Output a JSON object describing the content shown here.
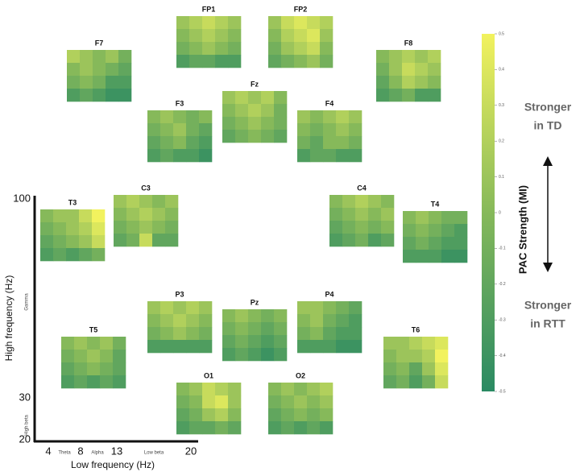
{
  "chart_data": {
    "type": "heatmap",
    "ylabel": "High frequency (Hz)",
    "xlabel": "Low frequency (Hz)",
    "yticks": [
      100,
      30,
      20
    ],
    "ybands": [
      "Gamma",
      "High beta"
    ],
    "xticks": [
      4,
      8,
      13,
      20
    ],
    "xbands": [
      "Theta",
      "Alpha",
      "Low beta"
    ],
    "colorbar_label": "PAC Strength (MI)",
    "zlim": [
      -0.5,
      0.5
    ],
    "zticks": [
      0.5,
      0.4,
      0.3,
      0.2,
      0.1,
      0,
      -0.1,
      -0.2,
      -0.3,
      -0.4,
      -0.5
    ],
    "top_annotation": [
      "Stronger",
      "in TD"
    ],
    "bottom_annotation": [
      "Stronger",
      "in RTT"
    ],
    "panels": [
      {
        "name": "FP1",
        "values": [
          [
            0.1,
            0.2,
            0.3,
            0.2,
            0.1
          ],
          [
            0,
            0.1,
            0.2,
            0.1,
            0
          ],
          [
            -0.1,
            0,
            0.1,
            0,
            -0.1
          ],
          [
            -0.3,
            -0.2,
            -0.2,
            -0.3,
            -0.3
          ]
        ]
      },
      {
        "name": "FP2",
        "values": [
          [
            0.1,
            0.3,
            0.4,
            0.3,
            0.2
          ],
          [
            0,
            0.2,
            0.3,
            0.4,
            0.1
          ],
          [
            -0.1,
            0.1,
            0.2,
            0.3,
            0
          ],
          [
            -0.2,
            -0.1,
            0,
            0.1,
            -0.1
          ]
        ]
      },
      {
        "name": "F7",
        "values": [
          [
            0.2,
            0.1,
            0,
            0.1,
            -0.1
          ],
          [
            0,
            0.1,
            0,
            -0.1,
            -0.2
          ],
          [
            -0.1,
            0,
            -0.1,
            -0.3,
            -0.3
          ],
          [
            -0.3,
            -0.2,
            -0.3,
            -0.4,
            -0.4
          ]
        ]
      },
      {
        "name": "F8",
        "values": [
          [
            0,
            0.1,
            0.2,
            0.1,
            0.2
          ],
          [
            -0.1,
            0.1,
            0.3,
            0.2,
            0.1
          ],
          [
            -0.2,
            0,
            0.2,
            0.1,
            0
          ],
          [
            -0.3,
            -0.2,
            -0.1,
            -0.3,
            -0.3
          ]
        ]
      },
      {
        "name": "Fz",
        "values": [
          [
            0.1,
            0.2,
            0.1,
            0.2,
            0
          ],
          [
            0,
            0.1,
            0.2,
            0.1,
            -0.1
          ],
          [
            -0.1,
            0,
            0.1,
            0,
            -0.1
          ],
          [
            -0.2,
            -0.1,
            0,
            -0.1,
            -0.2
          ]
        ]
      },
      {
        "name": "F3",
        "values": [
          [
            0,
            0.1,
            0,
            -0.1,
            0
          ],
          [
            -0.1,
            0,
            0.1,
            -0.1,
            -0.2
          ],
          [
            -0.2,
            -0.1,
            0,
            -0.2,
            -0.3
          ],
          [
            -0.3,
            -0.2,
            -0.3,
            -0.3,
            -0.4
          ]
        ]
      },
      {
        "name": "F4",
        "values": [
          [
            0.1,
            0,
            0.1,
            0.2,
            0.1
          ],
          [
            0,
            -0.1,
            0,
            0.1,
            0
          ],
          [
            -0.1,
            -0.2,
            0,
            0,
            -0.1
          ],
          [
            -0.3,
            -0.2,
            -0.2,
            -0.3,
            -0.3
          ]
        ]
      },
      {
        "name": "T3",
        "values": [
          [
            0,
            0.1,
            0.1,
            0.3,
            0.5
          ],
          [
            -0.1,
            0,
            0.1,
            0.2,
            0.4
          ],
          [
            -0.2,
            -0.1,
            0,
            0.1,
            0.3
          ],
          [
            -0.3,
            -0.2,
            -0.3,
            -0.2,
            -0.1
          ]
        ]
      },
      {
        "name": "C3",
        "values": [
          [
            0.1,
            0.2,
            0.1,
            0,
            0.1
          ],
          [
            0,
            0.1,
            0.2,
            0.1,
            0
          ],
          [
            -0.1,
            0,
            0.1,
            0,
            -0.1
          ],
          [
            -0.2,
            -0.1,
            0.3,
            -0.2,
            -0.2
          ]
        ]
      },
      {
        "name": "C4",
        "values": [
          [
            0,
            0.1,
            0.2,
            0.1,
            0
          ],
          [
            -0.1,
            0,
            0.1,
            0,
            0.1
          ],
          [
            -0.2,
            -0.1,
            0,
            -0.1,
            0
          ],
          [
            -0.3,
            -0.2,
            -0.1,
            -0.3,
            -0.2
          ]
        ]
      },
      {
        "name": "T4",
        "values": [
          [
            0,
            0.1,
            0,
            -0.1,
            -0.1
          ],
          [
            -0.1,
            0,
            -0.1,
            -0.2,
            -0.3
          ],
          [
            -0.2,
            -0.1,
            -0.2,
            -0.3,
            -0.3
          ],
          [
            -0.3,
            -0.3,
            -0.3,
            -0.4,
            -0.4
          ]
        ]
      },
      {
        "name": "P3",
        "values": [
          [
            0.1,
            0.2,
            0.1,
            0.2,
            0.1
          ],
          [
            0,
            0.1,
            0.2,
            0.1,
            0
          ],
          [
            -0.1,
            0,
            0.1,
            0,
            -0.1
          ],
          [
            -0.3,
            -0.3,
            -0.3,
            -0.3,
            -0.3
          ]
        ]
      },
      {
        "name": "Pz",
        "values": [
          [
            0,
            0.1,
            0,
            -0.1,
            0
          ],
          [
            -0.1,
            0,
            -0.1,
            -0.2,
            -0.1
          ],
          [
            -0.2,
            -0.1,
            -0.2,
            -0.3,
            -0.2
          ],
          [
            -0.3,
            -0.2,
            -0.3,
            -0.4,
            -0.3
          ]
        ]
      },
      {
        "name": "P4",
        "values": [
          [
            0.1,
            0.1,
            0,
            -0.1,
            -0.2
          ],
          [
            0,
            0.1,
            -0.1,
            -0.2,
            -0.3
          ],
          [
            -0.1,
            0,
            -0.2,
            -0.3,
            -0.3
          ],
          [
            -0.3,
            -0.3,
            -0.3,
            -0.4,
            -0.4
          ]
        ]
      },
      {
        "name": "T5",
        "values": [
          [
            0,
            0.1,
            0,
            0.1,
            -0.1
          ],
          [
            -0.1,
            0,
            0.1,
            0,
            -0.2
          ],
          [
            -0.2,
            -0.1,
            0,
            -0.1,
            -0.2
          ],
          [
            -0.3,
            -0.2,
            -0.3,
            -0.2,
            -0.3
          ]
        ]
      },
      {
        "name": "O1",
        "values": [
          [
            0,
            0.1,
            0.3,
            0.2,
            0.1
          ],
          [
            -0.1,
            0,
            0.3,
            0.4,
            0.1
          ],
          [
            -0.2,
            -0.1,
            0.1,
            0.2,
            0
          ],
          [
            -0.3,
            -0.2,
            -0.2,
            -0.1,
            -0.2
          ]
        ]
      },
      {
        "name": "O2",
        "values": [
          [
            0,
            0.1,
            0,
            0.1,
            0.2
          ],
          [
            -0.1,
            0,
            0.1,
            0,
            0.1
          ],
          [
            -0.2,
            -0.1,
            0,
            -0.1,
            0
          ],
          [
            -0.3,
            -0.2,
            -0.3,
            -0.2,
            -0.3
          ]
        ]
      },
      {
        "name": "T6",
        "values": [
          [
            0.1,
            0.1,
            0.2,
            0.3,
            0.4
          ],
          [
            0,
            0.1,
            0.1,
            0.2,
            0.5
          ],
          [
            -0.1,
            0,
            -0.2,
            0.1,
            0.4
          ],
          [
            -0.2,
            -0.1,
            -0.3,
            -0.1,
            0.3
          ]
        ]
      }
    ]
  }
}
